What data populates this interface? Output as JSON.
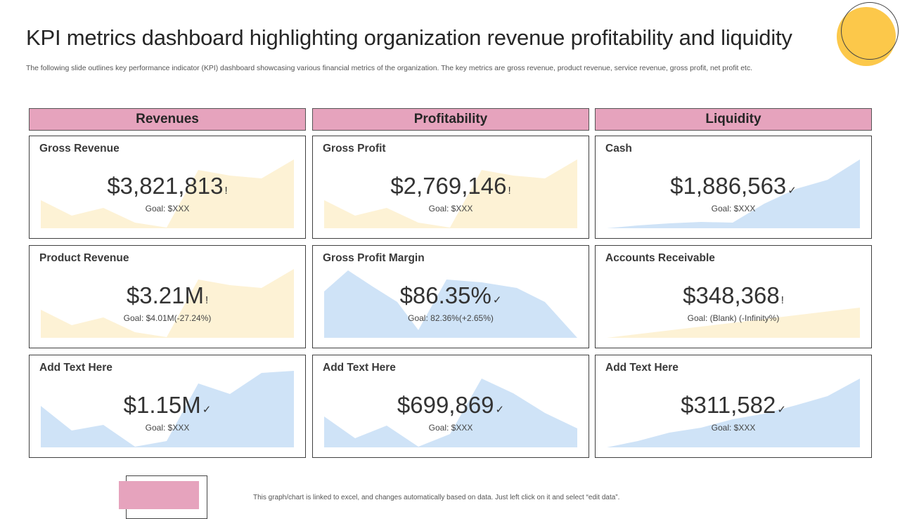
{
  "header": {
    "title": "KPI metrics dashboard highlighting organization revenue profitability and liquidity",
    "subtitle": "The following slide outlines key performance indicator (KPI) dashboard showcasing various financial metrics of the organization. The key metrics are gross revenue, product revenue, service revenue, gross profit, net profit etc."
  },
  "colors": {
    "header_pink": "#E6A3BD",
    "deco_yellow": "#FCC84A",
    "area_yellow": "#FDF2D5",
    "area_blue": "#CFE3F7"
  },
  "columns": [
    {
      "header": "Revenues",
      "cards": [
        {
          "title": "Gross Revenue",
          "value": "$3,821,813",
          "status": "!",
          "goal": "Goal: $XXX",
          "chart_color": "yellow",
          "chart": "up-left-dip"
        },
        {
          "title": "Product Revenue",
          "value": "$3.21M",
          "status": "!",
          "goal": "Goal: $4.01M(-27.24%)",
          "chart_color": "yellow",
          "chart": "up-left-dip"
        },
        {
          "title": "Add Text Here",
          "value": "$1.15M",
          "status": "✓",
          "goal": "Goal: $XXX",
          "chart_color": "blue",
          "chart": "rise-right"
        }
      ]
    },
    {
      "header": "Profitability",
      "cards": [
        {
          "title": "Gross Profit",
          "value": "$2,769,146",
          "status": "!",
          "goal": "Goal: $XXX",
          "chart_color": "yellow",
          "chart": "up-left-dip"
        },
        {
          "title": "Gross Profit Margin",
          "value": "$86.35%",
          "status": "✓",
          "goal": "Goal: 82.36%(+2.65%)",
          "chart_color": "blue",
          "chart": "hump"
        },
        {
          "title": "Add Text Here",
          "value": "$699,869",
          "status": "✓",
          "goal": "Goal: $XXX",
          "chart_color": "blue",
          "chart": "peak-mid"
        }
      ]
    },
    {
      "header": "Liquidity",
      "cards": [
        {
          "title": "Cash",
          "value": "$1,886,563",
          "status": "✓",
          "goal": "Goal: $XXX",
          "chart_color": "blue",
          "chart": "rise-late"
        },
        {
          "title": "Accounts Receivable",
          "value": "$348,368",
          "status": "!",
          "goal": "Goal: (Blank) (-Infinity%)",
          "chart_color": "yellow",
          "chart": "wedge"
        },
        {
          "title": "Add Text Here",
          "value": "$311,582",
          "status": "✓",
          "goal": "Goal: $XXX",
          "chart_color": "blue",
          "chart": "rise-steady"
        }
      ]
    }
  ],
  "footer": {
    "note": "This graph/chart is linked to excel, and changes automatically based on data. Just left click on it and select “edit data”."
  }
}
